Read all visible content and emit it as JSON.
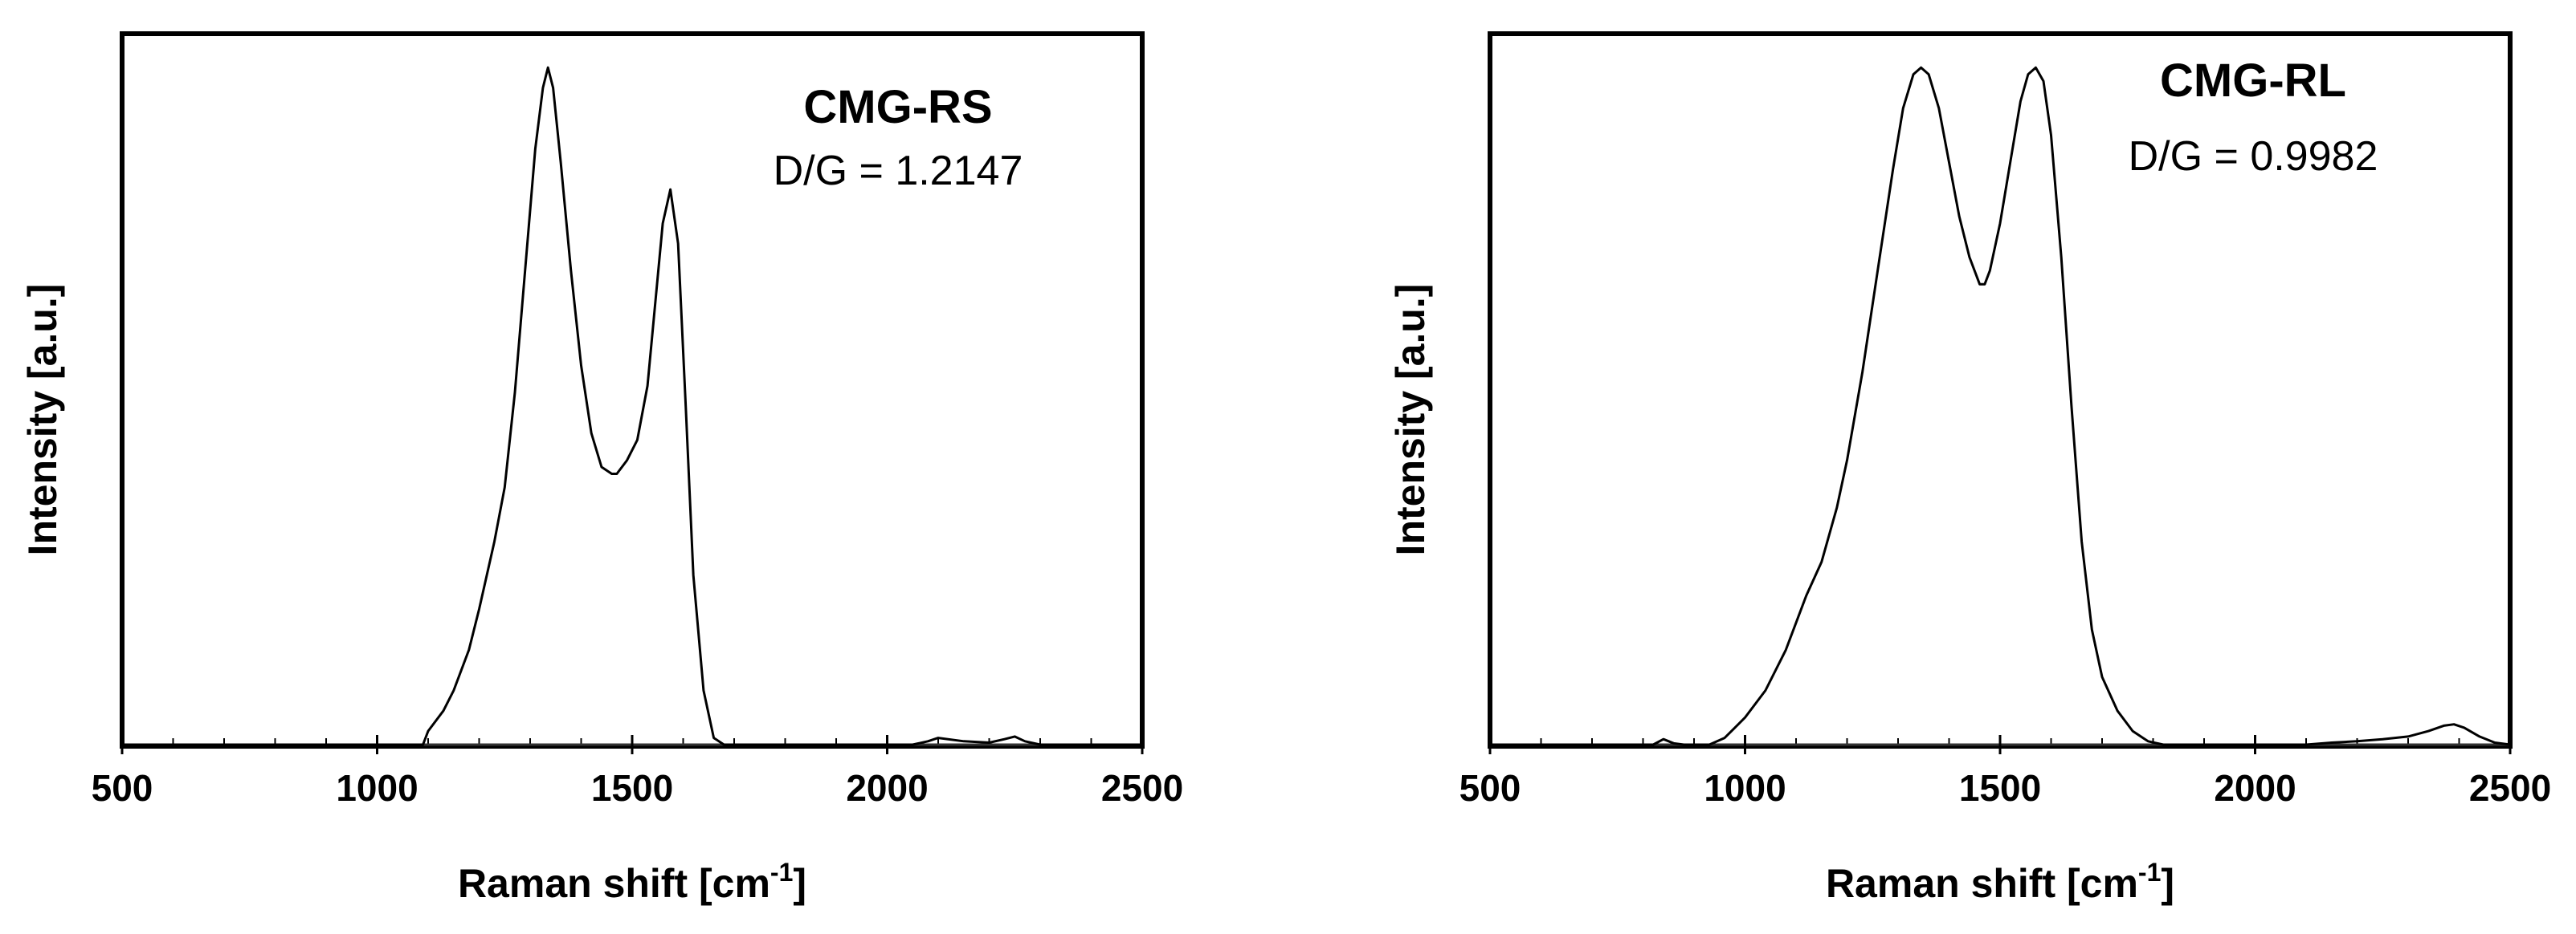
{
  "chart_data": [
    {
      "type": "line",
      "title": "CMG-RS",
      "annotation": "D/G = 1.2147",
      "xlabel": "Raman shift [cm",
      "xlabel_sup": "-1",
      "xlabel_end": "]",
      "ylabel": "Intensity [a.u.]",
      "xlim": [
        500,
        2500
      ],
      "ylim": [
        0,
        1.05
      ],
      "xticks": [
        "500",
        "1000",
        "1500",
        "2000",
        "2500"
      ],
      "grid": false,
      "legend": "none",
      "series": [
        {
          "x": [
            500,
            1050,
            1090,
            1100,
            1130,
            1150,
            1180,
            1200,
            1230,
            1250,
            1270,
            1290,
            1310,
            1325,
            1335,
            1345,
            1360,
            1380,
            1400,
            1420,
            1440,
            1460,
            1470,
            1490,
            1510,
            1530,
            1545,
            1560,
            1575,
            1590,
            1605,
            1620,
            1640,
            1660,
            1680,
            1700,
            2050,
            2080,
            2100,
            2150,
            2200,
            2230,
            2250,
            2270,
            2300,
            2500
          ],
          "y": [
            0,
            0,
            0,
            0.02,
            0.05,
            0.08,
            0.14,
            0.2,
            0.3,
            0.38,
            0.52,
            0.7,
            0.88,
            0.97,
            1.0,
            0.97,
            0.86,
            0.7,
            0.56,
            0.46,
            0.41,
            0.4,
            0.4,
            0.42,
            0.45,
            0.53,
            0.65,
            0.77,
            0.82,
            0.74,
            0.5,
            0.25,
            0.08,
            0.01,
            0,
            0,
            0,
            0.005,
            0.01,
            0.005,
            0.003,
            0.008,
            0.012,
            0.005,
            0,
            0
          ]
        }
      ]
    },
    {
      "type": "line",
      "title": "CMG-RL",
      "annotation": "D/G = 0.9982",
      "xlabel": "Raman shift [cm",
      "xlabel_sup": "-1",
      "xlabel_end": "]",
      "ylabel": "Intensity [a.u.]",
      "xlim": [
        500,
        2500
      ],
      "ylim": [
        0,
        1.05
      ],
      "xticks": [
        "500",
        "1000",
        "1500",
        "2000",
        "2500"
      ],
      "grid": false,
      "legend": "none",
      "series": [
        {
          "x": [
            500,
            820,
            840,
            860,
            880,
            930,
            960,
            1000,
            1040,
            1080,
            1120,
            1150,
            1180,
            1200,
            1230,
            1260,
            1290,
            1310,
            1330,
            1345,
            1360,
            1380,
            1400,
            1420,
            1440,
            1460,
            1470,
            1480,
            1500,
            1520,
            1540,
            1555,
            1570,
            1585,
            1600,
            1620,
            1640,
            1660,
            1680,
            1700,
            1730,
            1760,
            1790,
            1820,
            2100,
            2150,
            2200,
            2250,
            2300,
            2340,
            2370,
            2390,
            2410,
            2440,
            2470,
            2500
          ],
          "y": [
            0,
            0,
            0.008,
            0.002,
            0,
            0,
            0.01,
            0.04,
            0.08,
            0.14,
            0.22,
            0.27,
            0.35,
            0.42,
            0.55,
            0.7,
            0.85,
            0.94,
            0.99,
            1.0,
            0.99,
            0.94,
            0.86,
            0.78,
            0.72,
            0.68,
            0.68,
            0.7,
            0.77,
            0.86,
            0.95,
            0.99,
            1.0,
            0.98,
            0.9,
            0.72,
            0.5,
            0.3,
            0.17,
            0.1,
            0.05,
            0.02,
            0.005,
            0,
            0,
            0.003,
            0.005,
            0.008,
            0.012,
            0.02,
            0.028,
            0.03,
            0.025,
            0.012,
            0.003,
            0
          ]
        }
      ]
    }
  ]
}
